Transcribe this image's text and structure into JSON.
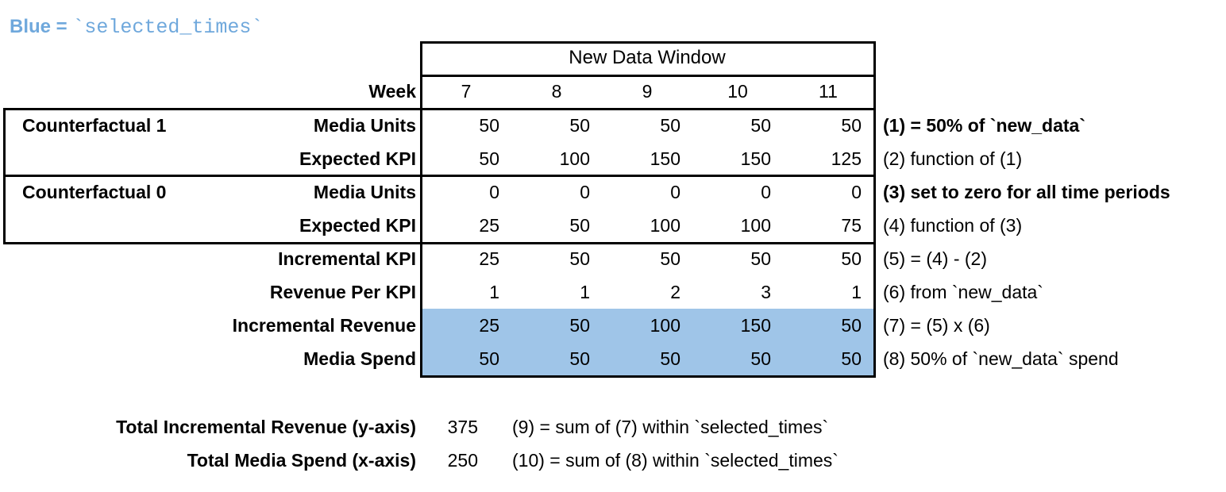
{
  "title": {
    "prefix": "Blue = ",
    "code": "`selected_times`"
  },
  "table": {
    "header": "New Data Window",
    "week_label": "Week",
    "weeks": [
      "7",
      "8",
      "9",
      "10",
      "11"
    ],
    "groups": [
      {
        "label": "Counterfactual 1"
      },
      {
        "label": "Counterfactual 0"
      }
    ],
    "rows": [
      {
        "label": "Media Units",
        "values": [
          "50",
          "50",
          "50",
          "50",
          "50"
        ],
        "annotation": "(1) = 50% of `new_data`",
        "annotation_bold": true,
        "highlight": false
      },
      {
        "label": "Expected KPI",
        "values": [
          "50",
          "100",
          "150",
          "150",
          "125"
        ],
        "annotation": "(2) function of (1)",
        "annotation_bold": false,
        "highlight": false
      },
      {
        "label": "Media Units",
        "values": [
          "0",
          "0",
          "0",
          "0",
          "0"
        ],
        "annotation": "(3) set to zero for all time periods",
        "annotation_bold": true,
        "highlight": false
      },
      {
        "label": "Expected KPI",
        "values": [
          "25",
          "50",
          "100",
          "100",
          "75"
        ],
        "annotation": "(4) function of (3)",
        "annotation_bold": false,
        "highlight": false
      },
      {
        "label": "Incremental KPI",
        "values": [
          "25",
          "50",
          "50",
          "50",
          "50"
        ],
        "annotation": "(5) = (4) - (2)",
        "annotation_bold": false,
        "highlight": false
      },
      {
        "label": "Revenue Per KPI",
        "values": [
          "1",
          "1",
          "2",
          "3",
          "1"
        ],
        "annotation": "(6) from `new_data`",
        "annotation_bold": false,
        "highlight": false
      },
      {
        "label": "Incremental Revenue",
        "values": [
          "25",
          "50",
          "100",
          "150",
          "50"
        ],
        "annotation": "(7) = (5) x (6)",
        "annotation_bold": false,
        "highlight": true
      },
      {
        "label": "Media Spend",
        "values": [
          "50",
          "50",
          "50",
          "50",
          "50"
        ],
        "annotation": "(8) 50% of `new_data` spend",
        "annotation_bold": false,
        "highlight": true
      }
    ],
    "totals": [
      {
        "label": "Total Incremental Revenue (y-axis)",
        "value": "375",
        "annotation": "(9) = sum of (7) within `selected_times`"
      },
      {
        "label": "Total Media Spend (x-axis)",
        "value": "250",
        "annotation": "(10) = sum of (8) within `selected_times`"
      }
    ]
  },
  "colors": {
    "highlight_blue": "#9FC5E8",
    "title_blue": "#6FA8DC",
    "border": "#000000"
  }
}
